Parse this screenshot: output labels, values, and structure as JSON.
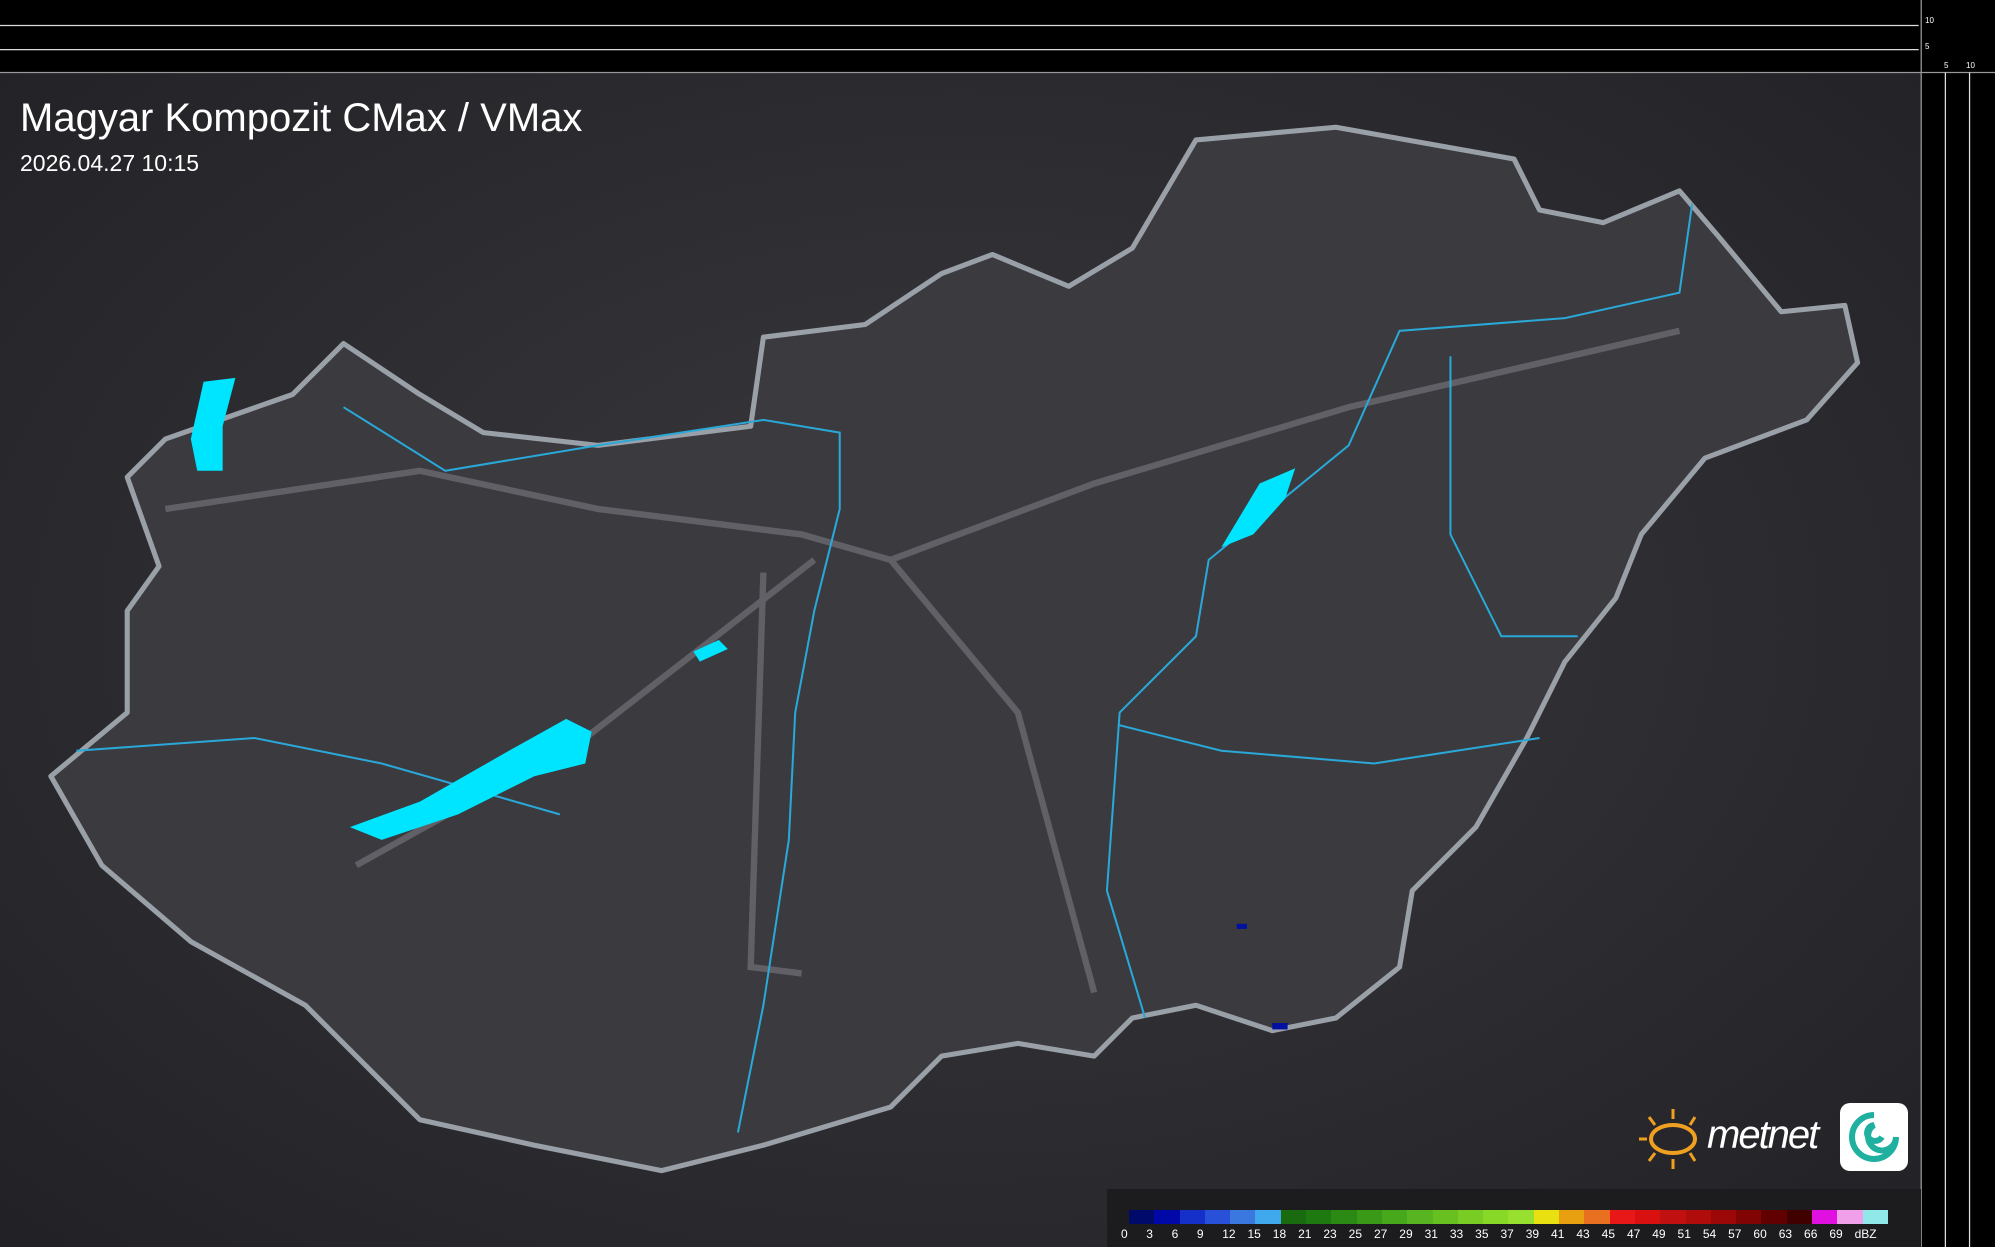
{
  "header": {
    "title": "Magyar Kompozit CMax / VMax",
    "timestamp": "2026.04.27 10:15"
  },
  "scale": {
    "vertical_ticks": [
      "10",
      "5"
    ],
    "horizontal_ticks": [
      "5",
      "10"
    ]
  },
  "legend": {
    "unit": "dBZ",
    "labels": [
      "0",
      "3",
      "6",
      "9",
      "12",
      "15",
      "18",
      "21",
      "23",
      "25",
      "27",
      "29",
      "31",
      "33",
      "35",
      "37",
      "39",
      "41",
      "43",
      "45",
      "47",
      "49",
      "51",
      "54",
      "57",
      "60",
      "63",
      "66",
      "69"
    ],
    "colors": [
      "#000a6b",
      "#0008a8",
      "#1430c8",
      "#2850d8",
      "#3a78e0",
      "#40a8ec",
      "#1a6a10",
      "#1e7a10",
      "#2a8a14",
      "#3a9a18",
      "#48a81c",
      "#58b420",
      "#68c020",
      "#78cc24",
      "#88d828",
      "#98e030",
      "#e8e010",
      "#e8a010",
      "#e87020",
      "#e81818",
      "#d81010",
      "#c01010",
      "#b00c0c",
      "#9c0808",
      "#800404",
      "#600000",
      "#400000",
      "#e010e0",
      "#f0a0e8",
      "#90e8e8"
    ]
  },
  "colors": {
    "water": "#00e5ff",
    "river": "#2aa8d8",
    "border": "#9aa0a8",
    "background": "#2c2c30"
  },
  "logo": {
    "text": "metnet"
  }
}
